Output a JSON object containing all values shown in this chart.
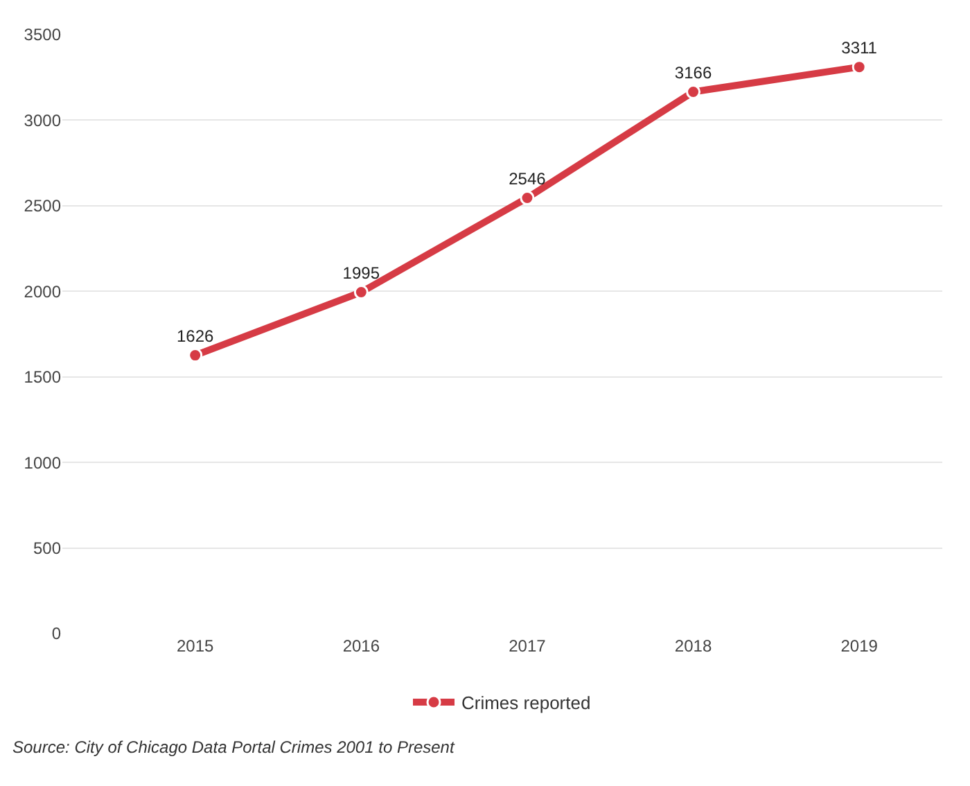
{
  "chart_data": {
    "type": "line",
    "categories": [
      "2015",
      "2016",
      "2017",
      "2018",
      "2019"
    ],
    "series": [
      {
        "name": "Crimes reported",
        "color": "#d63b45",
        "values": [
          1626,
          1995,
          2546,
          3166,
          3311
        ]
      }
    ],
    "ylim": [
      0,
      3500
    ],
    "yticks": [
      0,
      500,
      1000,
      1500,
      2000,
      2500,
      3000,
      3500
    ],
    "grid": "y",
    "legend": "bottom",
    "marker": "circle",
    "line_style": "solid",
    "data_labels": true,
    "annotations": [
      "Source: City of Chicago Data Portal Crimes 2001 to Present"
    ]
  }
}
